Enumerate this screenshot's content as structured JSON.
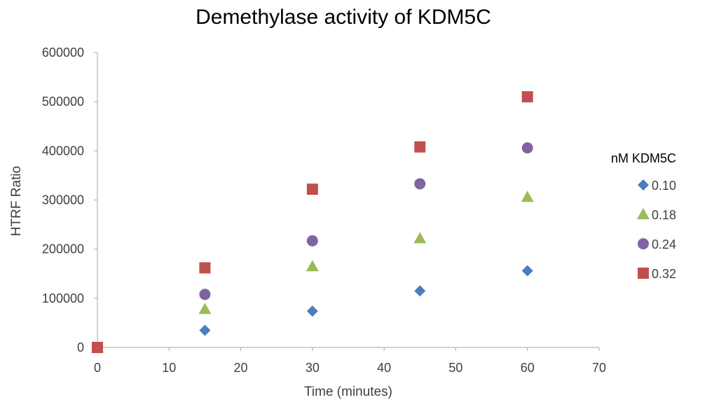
{
  "chart_data": {
    "type": "scatter",
    "title": "Demethylase activity of KDM5C",
    "xlabel": "Time (minutes)",
    "ylabel": "HTRF  Ratio",
    "xlim": [
      0,
      70
    ],
    "ylim": [
      0,
      600000
    ],
    "x_ticks": [
      0,
      10,
      20,
      30,
      40,
      50,
      60,
      70
    ],
    "y_ticks": [
      0,
      100000,
      200000,
      300000,
      400000,
      500000,
      600000
    ],
    "grid": false,
    "legend": {
      "title": "nM KDM5C",
      "position": "right"
    },
    "series": [
      {
        "name": "0.10",
        "marker": "diamond",
        "color": "#4a7ebb",
        "points": [
          [
            0,
            0
          ],
          [
            15,
            35000
          ],
          [
            30,
            74000
          ],
          [
            45,
            115000
          ],
          [
            60,
            156000
          ]
        ]
      },
      {
        "name": "0.18",
        "marker": "triangle",
        "color": "#9bbb59",
        "points": [
          [
            0,
            0
          ],
          [
            15,
            78000
          ],
          [
            30,
            165000
          ],
          [
            45,
            222000
          ],
          [
            60,
            306000
          ]
        ]
      },
      {
        "name": "0.24",
        "marker": "circle",
        "color": "#8064a2",
        "points": [
          [
            0,
            0
          ],
          [
            15,
            108000
          ],
          [
            30,
            217000
          ],
          [
            45,
            333000
          ],
          [
            60,
            406000
          ]
        ]
      },
      {
        "name": "0.32",
        "marker": "square",
        "color": "#c0504d",
        "points": [
          [
            0,
            0
          ],
          [
            15,
            162000
          ],
          [
            30,
            322000
          ],
          [
            45,
            408000
          ],
          [
            60,
            510000
          ]
        ]
      }
    ]
  }
}
